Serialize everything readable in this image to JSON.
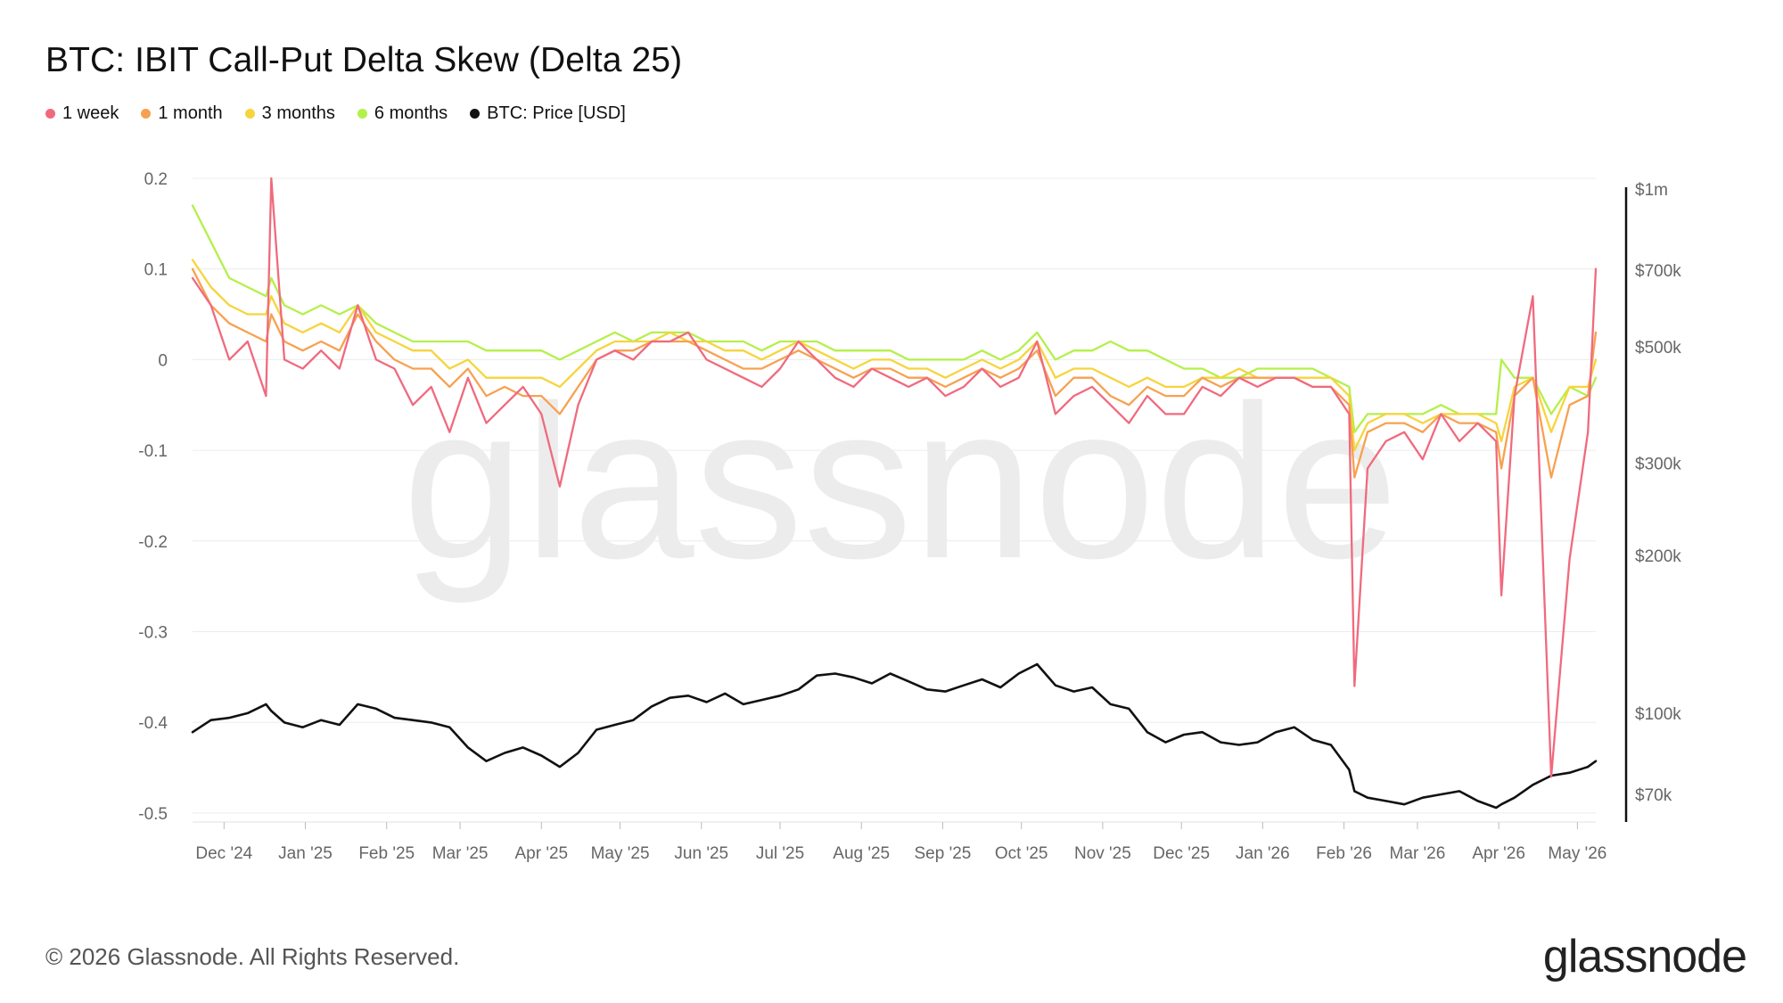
{
  "title": "BTC: IBIT Call-Put Delta Skew (Delta 25)",
  "legend": [
    {
      "label": "1 week",
      "color": "#f06a7e"
    },
    {
      "label": "1 month",
      "color": "#f7a150"
    },
    {
      "label": "3 months",
      "color": "#f7d43c"
    },
    {
      "label": "6 months",
      "color": "#b4f04a"
    },
    {
      "label": "BTC: Price [USD]",
      "color": "#111111"
    }
  ],
  "watermark": "glassnode",
  "footer": "© 2026 Glassnode. All Rights Reserved.",
  "logo": "glassnode",
  "chart_data": {
    "type": "line",
    "title": "BTC: IBIT Call-Put Delta Skew (Delta 25)",
    "grid": true,
    "legend_position": "top-left",
    "x_ticks": [
      "Dec '24",
      "Jan '25",
      "Feb '25",
      "Mar '25",
      "Apr '25",
      "May '25",
      "Jun '25",
      "Jul '25",
      "Aug '25",
      "Sep '25",
      "Oct '25",
      "Nov '25",
      "Dec '25",
      "Jan '26",
      "Feb '26",
      "Mar '26",
      "Apr '26",
      "May '26"
    ],
    "y_left": {
      "ticks": [
        "0.2",
        "0.1",
        "0",
        "-0.1",
        "-0.2",
        "-0.3",
        "-0.4",
        "-0.5"
      ],
      "range": [
        -0.51,
        0.2
      ]
    },
    "y_right": {
      "scale": "log",
      "ticks": [
        "$1m",
        "$700k",
        "$500k",
        "$300k",
        "$200k",
        "$100k",
        "$70k"
      ],
      "range": [
        62000,
        1000000
      ]
    },
    "x": [
      "2024-11-19",
      "2024-11-26",
      "2024-12-03",
      "2024-12-10",
      "2024-12-17",
      "2024-12-19",
      "2024-12-24",
      "2024-12-31",
      "2025-01-07",
      "2025-01-14",
      "2025-01-21",
      "2025-01-28",
      "2025-02-04",
      "2025-02-11",
      "2025-02-18",
      "2025-02-25",
      "2025-03-04",
      "2025-03-11",
      "2025-03-18",
      "2025-03-25",
      "2025-04-01",
      "2025-04-08",
      "2025-04-15",
      "2025-04-22",
      "2025-04-29",
      "2025-05-06",
      "2025-05-13",
      "2025-05-20",
      "2025-05-27",
      "2025-06-03",
      "2025-06-10",
      "2025-06-17",
      "2025-06-24",
      "2025-07-01",
      "2025-07-08",
      "2025-07-15",
      "2025-07-22",
      "2025-07-29",
      "2025-08-05",
      "2025-08-12",
      "2025-08-19",
      "2025-08-26",
      "2025-09-02",
      "2025-09-09",
      "2025-09-16",
      "2025-09-23",
      "2025-09-30",
      "2025-10-07",
      "2025-10-14",
      "2025-10-21",
      "2025-10-28",
      "2025-11-04",
      "2025-11-11",
      "2025-11-18",
      "2025-11-25",
      "2025-12-02",
      "2025-12-09",
      "2025-12-16",
      "2025-12-23",
      "2025-12-30",
      "2026-01-06",
      "2026-01-13",
      "2026-01-20",
      "2026-01-27",
      "2026-02-03",
      "2026-02-05",
      "2026-02-10",
      "2026-02-17",
      "2026-02-24",
      "2026-03-03",
      "2026-03-10",
      "2026-03-17",
      "2026-03-24",
      "2026-03-31",
      "2026-04-02",
      "2026-04-07",
      "2026-04-14",
      "2026-04-21",
      "2026-04-28",
      "2026-05-05",
      "2026-05-08"
    ],
    "series": [
      {
        "name": "1 week",
        "axis": "left",
        "color": "#f06a7e",
        "values": [
          0.09,
          0.06,
          0.0,
          0.02,
          -0.04,
          0.2,
          0.0,
          -0.01,
          0.01,
          -0.01,
          0.06,
          0.0,
          -0.01,
          -0.05,
          -0.03,
          -0.08,
          -0.02,
          -0.07,
          -0.05,
          -0.03,
          -0.06,
          -0.14,
          -0.05,
          0.0,
          0.01,
          0.0,
          0.02,
          0.02,
          0.03,
          0.0,
          -0.01,
          -0.02,
          -0.03,
          -0.01,
          0.02,
          0.0,
          -0.02,
          -0.03,
          -0.01,
          -0.02,
          -0.03,
          -0.02,
          -0.04,
          -0.03,
          -0.01,
          -0.03,
          -0.02,
          0.02,
          -0.06,
          -0.04,
          -0.03,
          -0.05,
          -0.07,
          -0.04,
          -0.06,
          -0.06,
          -0.03,
          -0.04,
          -0.02,
          -0.03,
          -0.02,
          -0.02,
          -0.03,
          -0.03,
          -0.06,
          -0.36,
          -0.12,
          -0.09,
          -0.08,
          -0.11,
          -0.06,
          -0.09,
          -0.07,
          -0.09,
          -0.26,
          -0.04,
          0.07,
          -0.46,
          -0.22,
          -0.08,
          0.1
        ]
      },
      {
        "name": "1 month",
        "axis": "left",
        "color": "#f7a150",
        "values": [
          0.1,
          0.06,
          0.04,
          0.03,
          0.02,
          0.05,
          0.02,
          0.01,
          0.02,
          0.01,
          0.05,
          0.02,
          0.0,
          -0.01,
          -0.01,
          -0.03,
          -0.01,
          -0.04,
          -0.03,
          -0.04,
          -0.04,
          -0.06,
          -0.03,
          0.0,
          0.01,
          0.01,
          0.02,
          0.02,
          0.02,
          0.01,
          0.0,
          -0.01,
          -0.01,
          0.0,
          0.01,
          0.0,
          -0.01,
          -0.02,
          -0.01,
          -0.01,
          -0.02,
          -0.02,
          -0.03,
          -0.02,
          -0.01,
          -0.02,
          -0.01,
          0.01,
          -0.04,
          -0.02,
          -0.02,
          -0.04,
          -0.05,
          -0.03,
          -0.04,
          -0.04,
          -0.02,
          -0.03,
          -0.02,
          -0.02,
          -0.02,
          -0.02,
          -0.03,
          -0.03,
          -0.05,
          -0.13,
          -0.08,
          -0.07,
          -0.07,
          -0.08,
          -0.06,
          -0.07,
          -0.07,
          -0.08,
          -0.12,
          -0.04,
          -0.02,
          -0.13,
          -0.05,
          -0.04,
          0.03
        ]
      },
      {
        "name": "3 months",
        "axis": "left",
        "color": "#f7d43c",
        "values": [
          0.11,
          0.08,
          0.06,
          0.05,
          0.05,
          0.07,
          0.04,
          0.03,
          0.04,
          0.03,
          0.06,
          0.03,
          0.02,
          0.01,
          0.01,
          -0.01,
          0.0,
          -0.02,
          -0.02,
          -0.02,
          -0.02,
          -0.03,
          -0.01,
          0.01,
          0.02,
          0.02,
          0.02,
          0.03,
          0.02,
          0.02,
          0.01,
          0.01,
          0.0,
          0.01,
          0.02,
          0.01,
          0.0,
          -0.01,
          0.0,
          0.0,
          -0.01,
          -0.01,
          -0.02,
          -0.01,
          0.0,
          -0.01,
          0.0,
          0.02,
          -0.02,
          -0.01,
          -0.01,
          -0.02,
          -0.03,
          -0.02,
          -0.03,
          -0.03,
          -0.02,
          -0.02,
          -0.01,
          -0.02,
          -0.02,
          -0.02,
          -0.02,
          -0.02,
          -0.04,
          -0.1,
          -0.07,
          -0.06,
          -0.06,
          -0.07,
          -0.06,
          -0.06,
          -0.06,
          -0.07,
          -0.09,
          -0.03,
          -0.02,
          -0.08,
          -0.03,
          -0.03,
          0.0
        ]
      },
      {
        "name": "6 months",
        "axis": "left",
        "color": "#b4f04a",
        "values": [
          0.17,
          0.13,
          0.09,
          0.08,
          0.07,
          0.09,
          0.06,
          0.05,
          0.06,
          0.05,
          0.06,
          0.04,
          0.03,
          0.02,
          0.02,
          0.02,
          0.02,
          0.01,
          0.01,
          0.01,
          0.01,
          0.0,
          0.01,
          0.02,
          0.03,
          0.02,
          0.03,
          0.03,
          0.03,
          0.02,
          0.02,
          0.02,
          0.01,
          0.02,
          0.02,
          0.02,
          0.01,
          0.01,
          0.01,
          0.01,
          0.0,
          0.0,
          0.0,
          0.0,
          0.01,
          0.0,
          0.01,
          0.03,
          0.0,
          0.01,
          0.01,
          0.02,
          0.01,
          0.01,
          0.0,
          -0.01,
          -0.01,
          -0.02,
          -0.02,
          -0.01,
          -0.01,
          -0.01,
          -0.01,
          -0.02,
          -0.03,
          -0.08,
          -0.06,
          -0.06,
          -0.06,
          -0.06,
          -0.05,
          -0.06,
          -0.06,
          -0.06,
          0.0,
          -0.02,
          -0.02,
          -0.06,
          -0.03,
          -0.04,
          -0.02
        ]
      },
      {
        "name": "BTC: Price [USD]",
        "axis": "right",
        "color": "#111111",
        "values": [
          92000,
          97000,
          98000,
          100000,
          104000,
          101000,
          96000,
          94000,
          97000,
          95000,
          104000,
          102000,
          98000,
          97000,
          96000,
          94000,
          86000,
          81000,
          84000,
          86000,
          83000,
          79000,
          84000,
          93000,
          95000,
          97000,
          103000,
          107000,
          108000,
          105000,
          109000,
          104000,
          106000,
          108000,
          111000,
          118000,
          119000,
          117000,
          114000,
          119000,
          115000,
          111000,
          110000,
          113000,
          116000,
          112000,
          119000,
          124000,
          113000,
          110000,
          112000,
          104000,
          102000,
          92000,
          88000,
          91000,
          92000,
          88000,
          87000,
          88000,
          92000,
          94000,
          89000,
          87000,
          78000,
          71000,
          69000,
          68000,
          67000,
          69000,
          70000,
          71000,
          68000,
          66000,
          67000,
          69000,
          73000,
          76000,
          77000,
          79000,
          81000
        ]
      }
    ]
  }
}
